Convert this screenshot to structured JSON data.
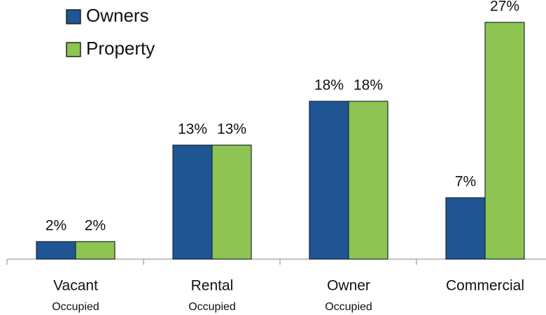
{
  "chart_data": {
    "type": "bar",
    "categories": [
      [
        "Vacant",
        "Occupied"
      ],
      [
        "Rental",
        "Occupied"
      ],
      [
        "Owner",
        "Occupied"
      ],
      [
        "Commercial"
      ]
    ],
    "series": [
      {
        "name": "Owners",
        "color": "#1f5592",
        "values": [
          2,
          13,
          18,
          7
        ],
        "value_labels": [
          "2%",
          "13%",
          "18%",
          "7%"
        ]
      },
      {
        "name": "Property",
        "color": "#8dc452",
        "values": [
          2,
          13,
          18,
          27
        ],
        "value_labels": [
          "2%",
          "13%",
          "18%",
          "27%"
        ]
      }
    ],
    "legend": "top-left"
  }
}
